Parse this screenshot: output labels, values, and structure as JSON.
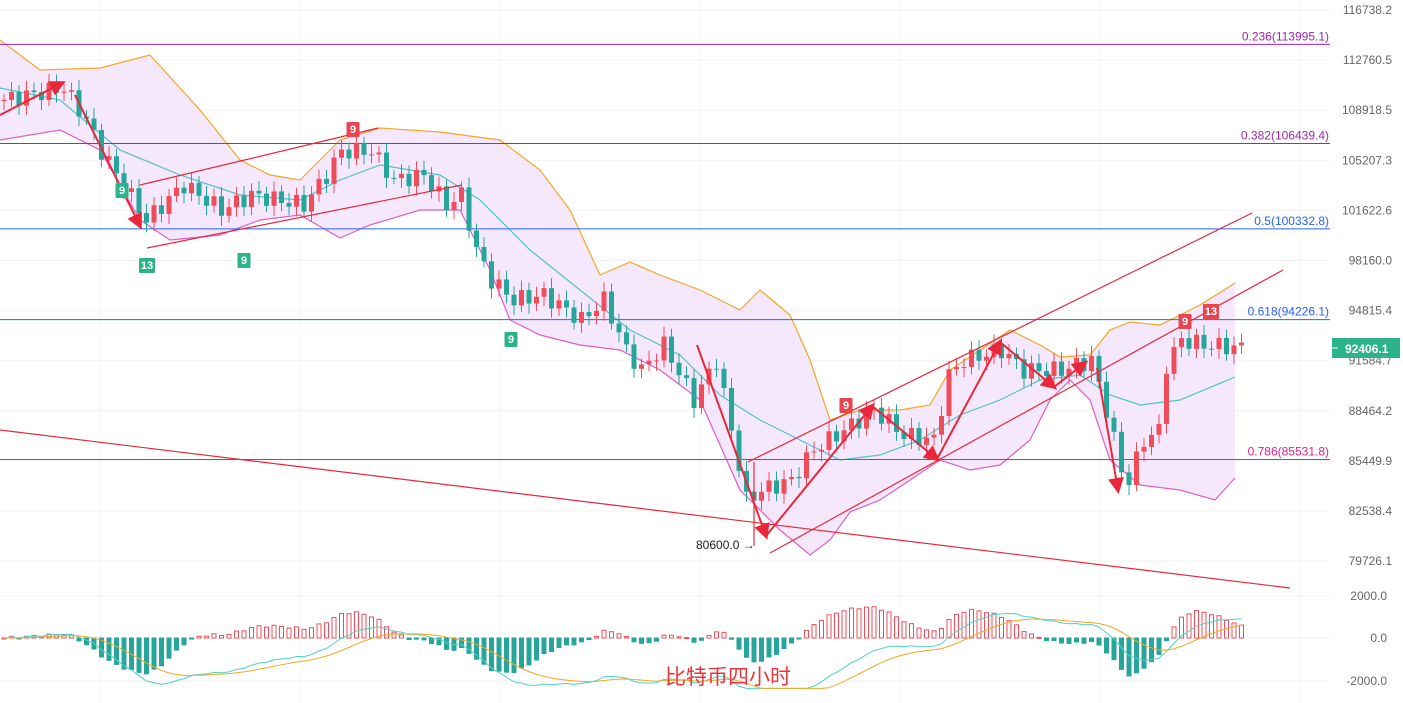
{
  "chart_data": {
    "type": "candlestick",
    "title": "比特币四小时",
    "price_axis_ticks": [
      116738.2,
      112760.5,
      108918.5,
      105207.3,
      101622.6,
      98160.0,
      94815.4,
      91584.7,
      88464.2,
      85449.9,
      82538.4,
      79726.1
    ],
    "price_axis_scale": "log",
    "macd_axis_ticks": [
      "2000.0",
      "0.0",
      "-2000.0"
    ],
    "current_price": "92406.1",
    "low_annotation": "80600.0 →",
    "fib_levels": [
      {
        "label": "0.236(113995.1)",
        "price": 113995.1,
        "color": "#9c27b0"
      },
      {
        "label": "0.382(106439.4)",
        "price": 106439.4,
        "color": "#9c27b0"
      },
      {
        "label": "0.5(100332.8)",
        "price": 100332.8,
        "color": "#2962ff"
      },
      {
        "label": "0.618(94226.1)",
        "price": 94226.1,
        "color": "#2962ff"
      },
      {
        "label": "0.786(85531.8)",
        "price": 85531.8,
        "color": "#e91e8c"
      }
    ],
    "price_keypoints": [
      [
        0,
        109687
      ],
      [
        8,
        110610
      ],
      [
        11,
        108185
      ],
      [
        13,
        105880
      ],
      [
        19,
        100940
      ],
      [
        24,
        103430
      ],
      [
        29,
        101650
      ],
      [
        33,
        102710
      ],
      [
        40,
        102010
      ],
      [
        43,
        104130
      ],
      [
        45,
        105880
      ],
      [
        49,
        105880
      ],
      [
        52,
        103780
      ],
      [
        56,
        104130
      ],
      [
        59,
        102010
      ],
      [
        61,
        102710
      ],
      [
        63,
        98855
      ],
      [
        65,
        96830
      ],
      [
        68,
        95515
      ],
      [
        72,
        95845
      ],
      [
        77,
        94197
      ],
      [
        80,
        95515
      ],
      [
        83,
        92250
      ],
      [
        85,
        90985
      ],
      [
        88,
        92585
      ],
      [
        92,
        89115
      ],
      [
        95,
        91615
      ],
      [
        97,
        87285
      ],
      [
        99,
        83150
      ],
      [
        101,
        83725
      ],
      [
        105,
        84305
      ],
      [
        108,
        86115
      ],
      [
        112,
        87285
      ],
      [
        116,
        88530
      ],
      [
        120,
        86985
      ],
      [
        124,
        86680
      ],
      [
        126,
        90670
      ],
      [
        128,
        91615
      ],
      [
        133,
        92250
      ],
      [
        136,
        90985
      ],
      [
        141,
        90985
      ],
      [
        145,
        91615
      ],
      [
        147,
        88530
      ],
      [
        149,
        84905
      ],
      [
        150,
        84305
      ],
      [
        152,
        86680
      ],
      [
        154,
        87285
      ],
      [
        155,
        91300
      ],
      [
        157,
        92925
      ],
      [
        160,
        92585
      ],
      [
        165,
        92406
      ]
    ],
    "td_markers": [
      {
        "label": "9",
        "type": "sell"
      },
      {
        "label": "9",
        "type": "sell"
      },
      {
        "label": "9",
        "type": "sell"
      },
      {
        "label": "13",
        "type": "sell"
      },
      {
        "label": "9",
        "type": "buy"
      },
      {
        "label": "13",
        "type": "buy"
      },
      {
        "label": "9",
        "type": "buy"
      },
      {
        "label": "9",
        "type": "buy"
      }
    ],
    "colors": {
      "up": "#ef4d5a",
      "down": "#26a69a",
      "band_upper": "#f5a623",
      "band_lower": "#e05fc8",
      "band_mid": "#4fc3c8",
      "band_fill": "#f3e3fb",
      "trend": "#e8283a",
      "badge": "#2bb38a"
    }
  }
}
